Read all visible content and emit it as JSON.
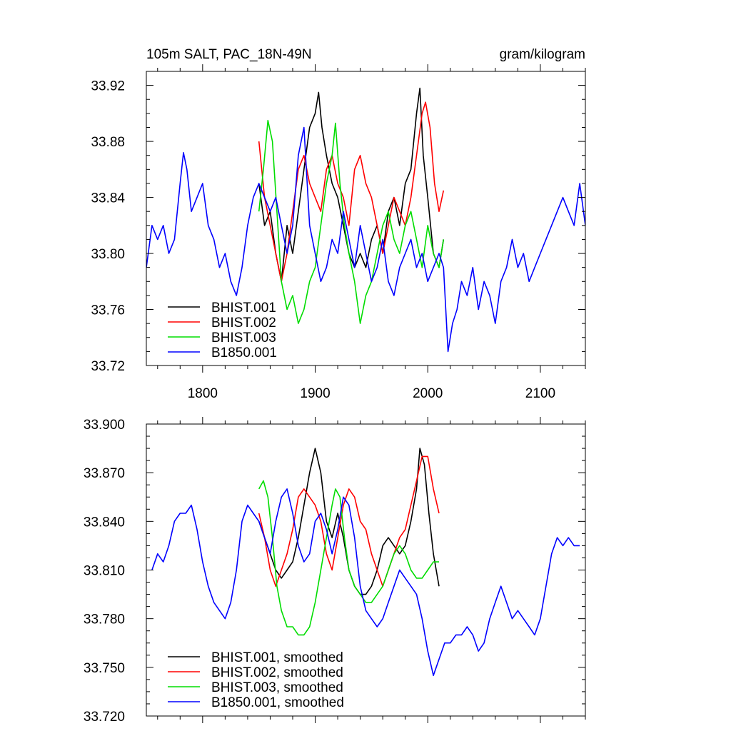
{
  "chart_data": [
    {
      "type": "line",
      "title_left": "105m SALT, PAC_18N-49N",
      "title_right": "gram/kilogram",
      "xlim": [
        1750,
        2140
      ],
      "ylim": [
        33.72,
        33.93
      ],
      "x_ticks": [
        1800,
        1900,
        2000,
        2100
      ],
      "x_tick_labels": [
        "1800",
        "1900",
        "2000",
        "2100"
      ],
      "y_ticks": [
        33.72,
        33.76,
        33.8,
        33.84,
        33.88,
        33.92
      ],
      "y_tick_labels": [
        "33.72",
        "33.76",
        "33.80",
        "33.84",
        "33.88",
        "33.92"
      ],
      "legend_position": "bottom-left",
      "series": [
        {
          "name": "BHIST.001",
          "color": "#000000",
          "x": [
            1850,
            1855,
            1860,
            1865,
            1870,
            1875,
            1880,
            1885,
            1890,
            1895,
            1900,
            1903,
            1906,
            1910,
            1915,
            1920,
            1925,
            1930,
            1935,
            1940,
            1945,
            1950,
            1955,
            1960,
            1965,
            1970,
            1975,
            1980,
            1985,
            1990,
            1993,
            1996,
            2000,
            2005,
            2010,
            2014
          ],
          "y": [
            33.85,
            33.82,
            33.83,
            33.8,
            33.78,
            33.82,
            33.8,
            33.83,
            33.86,
            33.89,
            33.9,
            33.915,
            33.89,
            33.87,
            33.85,
            33.84,
            33.82,
            33.8,
            33.79,
            33.8,
            33.79,
            33.81,
            33.82,
            33.8,
            33.83,
            33.84,
            33.82,
            33.85,
            33.86,
            33.9,
            33.918,
            33.87,
            33.84,
            33.8,
            33.79,
            33.81
          ]
        },
        {
          "name": "BHIST.002",
          "color": "#ff0000",
          "x": [
            1850,
            1855,
            1860,
            1865,
            1870,
            1875,
            1880,
            1885,
            1890,
            1895,
            1900,
            1905,
            1910,
            1915,
            1920,
            1925,
            1930,
            1935,
            1940,
            1945,
            1950,
            1955,
            1960,
            1965,
            1970,
            1975,
            1980,
            1985,
            1990,
            1995,
            1998,
            2002,
            2006,
            2010,
            2014
          ],
          "y": [
            33.88,
            33.84,
            33.82,
            33.8,
            33.78,
            33.8,
            33.83,
            33.86,
            33.87,
            33.85,
            33.84,
            33.83,
            33.86,
            33.87,
            33.85,
            33.84,
            33.82,
            33.86,
            33.87,
            33.85,
            33.84,
            33.82,
            33.8,
            33.82,
            33.84,
            33.83,
            33.82,
            33.84,
            33.87,
            33.9,
            33.908,
            33.89,
            33.85,
            33.83,
            33.845
          ]
        },
        {
          "name": "BHIST.003",
          "color": "#00dd00",
          "x": [
            1850,
            1854,
            1858,
            1862,
            1866,
            1870,
            1875,
            1880,
            1885,
            1890,
            1895,
            1900,
            1905,
            1910,
            1915,
            1918,
            1922,
            1926,
            1930,
            1935,
            1940,
            1945,
            1950,
            1955,
            1960,
            1965,
            1970,
            1975,
            1980,
            1985,
            1990,
            1995,
            2000,
            2005,
            2010,
            2014
          ],
          "y": [
            33.83,
            33.86,
            33.895,
            33.88,
            33.83,
            33.78,
            33.76,
            33.77,
            33.75,
            33.76,
            33.78,
            33.79,
            33.82,
            33.85,
            33.87,
            33.893,
            33.85,
            33.82,
            33.8,
            33.78,
            33.75,
            33.77,
            33.78,
            33.8,
            33.82,
            33.83,
            33.81,
            33.8,
            33.82,
            33.83,
            33.81,
            33.79,
            33.82,
            33.8,
            33.79,
            33.81
          ]
        },
        {
          "name": "B1850.001",
          "color": "#0000ff",
          "x": [
            1750,
            1755,
            1760,
            1765,
            1770,
            1775,
            1780,
            1783,
            1786,
            1790,
            1795,
            1800,
            1805,
            1810,
            1815,
            1820,
            1825,
            1830,
            1835,
            1840,
            1845,
            1850,
            1855,
            1860,
            1865,
            1870,
            1875,
            1880,
            1885,
            1890,
            1895,
            1900,
            1905,
            1910,
            1915,
            1920,
            1925,
            1930,
            1935,
            1940,
            1945,
            1950,
            1955,
            1960,
            1965,
            1970,
            1975,
            1980,
            1985,
            1990,
            1995,
            2000,
            2005,
            2010,
            2014,
            2018,
            2022,
            2026,
            2030,
            2035,
            2040,
            2045,
            2050,
            2055,
            2060,
            2065,
            2070,
            2075,
            2080,
            2085,
            2090,
            2095,
            2100,
            2105,
            2110,
            2115,
            2120,
            2125,
            2130,
            2135,
            2140
          ],
          "y": [
            33.79,
            33.82,
            33.81,
            33.82,
            33.8,
            33.81,
            33.85,
            33.872,
            33.86,
            33.83,
            33.84,
            33.85,
            33.82,
            33.81,
            33.79,
            33.8,
            33.78,
            33.77,
            33.79,
            33.82,
            33.84,
            33.85,
            33.84,
            33.83,
            33.84,
            33.82,
            33.8,
            33.82,
            33.87,
            33.89,
            33.82,
            33.8,
            33.78,
            33.79,
            33.81,
            33.8,
            33.83,
            33.81,
            33.79,
            33.82,
            33.8,
            33.78,
            33.79,
            33.81,
            33.78,
            33.77,
            33.79,
            33.8,
            33.81,
            33.79,
            33.8,
            33.78,
            33.79,
            33.8,
            33.79,
            33.73,
            33.75,
            33.76,
            33.78,
            33.77,
            33.79,
            33.76,
            33.78,
            33.77,
            33.75,
            33.78,
            33.79,
            33.81,
            33.79,
            33.8,
            33.78,
            33.79,
            33.8,
            33.81,
            33.82,
            33.83,
            33.84,
            33.83,
            33.82,
            33.85,
            33.82
          ]
        }
      ]
    },
    {
      "type": "line",
      "xlim": [
        1750,
        2140
      ],
      "ylim": [
        33.72,
        33.9
      ],
      "x_ticks": [
        1800,
        1900,
        2000,
        2100
      ],
      "y_ticks": [
        33.72,
        33.75,
        33.78,
        33.81,
        33.84,
        33.87,
        33.9
      ],
      "y_tick_labels": [
        "33.720",
        "33.750",
        "33.780",
        "33.810",
        "33.840",
        "33.870",
        "33.900"
      ],
      "legend_position": "bottom-left",
      "series": [
        {
          "name": "BHIST.001, smoothed",
          "color": "#000000",
          "x": [
            1850,
            1855,
            1860,
            1865,
            1870,
            1875,
            1880,
            1885,
            1890,
            1895,
            1900,
            1905,
            1910,
            1915,
            1920,
            1925,
            1930,
            1935,
            1940,
            1945,
            1950,
            1955,
            1960,
            1965,
            1970,
            1975,
            1980,
            1985,
            1990,
            1993,
            1997,
            2001,
            2005,
            2010
          ],
          "y": [
            33.84,
            33.83,
            33.82,
            33.81,
            33.805,
            33.81,
            33.815,
            33.83,
            33.85,
            33.87,
            33.885,
            33.87,
            33.84,
            33.83,
            33.845,
            33.83,
            33.81,
            33.8,
            33.795,
            33.795,
            33.8,
            33.81,
            33.825,
            33.83,
            33.825,
            33.82,
            33.825,
            33.84,
            33.86,
            33.885,
            33.875,
            33.845,
            33.82,
            33.8
          ]
        },
        {
          "name": "BHIST.002, smoothed",
          "color": "#ff0000",
          "x": [
            1850,
            1855,
            1860,
            1865,
            1870,
            1875,
            1880,
            1885,
            1890,
            1895,
            1900,
            1905,
            1910,
            1915,
            1920,
            1925,
            1930,
            1935,
            1940,
            1945,
            1950,
            1955,
            1960,
            1965,
            1970,
            1975,
            1980,
            1985,
            1990,
            1995,
            2000,
            2005,
            2010
          ],
          "y": [
            33.845,
            33.83,
            33.81,
            33.8,
            33.81,
            33.82,
            33.835,
            33.855,
            33.86,
            33.855,
            33.85,
            33.84,
            33.82,
            33.81,
            33.83,
            33.85,
            33.86,
            33.855,
            33.84,
            33.835,
            33.82,
            33.81,
            33.8,
            33.81,
            33.82,
            33.83,
            33.835,
            33.85,
            33.865,
            33.88,
            33.88,
            33.86,
            33.845
          ]
        },
        {
          "name": "BHIST.003, smoothed",
          "color": "#00dd00",
          "x": [
            1850,
            1854,
            1858,
            1862,
            1866,
            1870,
            1875,
            1880,
            1885,
            1890,
            1895,
            1900,
            1905,
            1910,
            1915,
            1918,
            1922,
            1926,
            1930,
            1935,
            1940,
            1945,
            1950,
            1955,
            1960,
            1965,
            1970,
            1975,
            1980,
            1985,
            1990,
            1995,
            2000,
            2005,
            2010
          ],
          "y": [
            33.86,
            33.865,
            33.855,
            33.83,
            33.8,
            33.785,
            33.775,
            33.775,
            33.77,
            33.77,
            33.775,
            33.79,
            33.81,
            33.83,
            33.85,
            33.86,
            33.855,
            33.83,
            33.81,
            33.8,
            33.795,
            33.79,
            33.79,
            33.795,
            33.8,
            33.81,
            33.82,
            33.825,
            33.82,
            33.81,
            33.805,
            33.805,
            33.81,
            33.815,
            33.815
          ]
        },
        {
          "name": "B1850.001, smoothed",
          "color": "#0000ff",
          "x": [
            1755,
            1760,
            1765,
            1770,
            1775,
            1780,
            1785,
            1790,
            1795,
            1800,
            1805,
            1810,
            1815,
            1820,
            1825,
            1830,
            1835,
            1840,
            1845,
            1850,
            1855,
            1860,
            1865,
            1870,
            1875,
            1880,
            1885,
            1890,
            1895,
            1900,
            1905,
            1910,
            1915,
            1920,
            1925,
            1930,
            1935,
            1940,
            1945,
            1950,
            1955,
            1960,
            1965,
            1970,
            1975,
            1980,
            1985,
            1990,
            1995,
            2000,
            2005,
            2010,
            2015,
            2020,
            2025,
            2030,
            2035,
            2040,
            2045,
            2050,
            2055,
            2060,
            2065,
            2070,
            2075,
            2080,
            2085,
            2090,
            2095,
            2100,
            2105,
            2110,
            2115,
            2120,
            2125,
            2130,
            2135
          ],
          "y": [
            33.81,
            33.82,
            33.815,
            33.825,
            33.84,
            33.845,
            33.845,
            33.85,
            33.835,
            33.815,
            33.8,
            33.79,
            33.785,
            33.78,
            33.79,
            33.81,
            33.84,
            33.85,
            33.845,
            33.84,
            33.83,
            33.82,
            33.84,
            33.855,
            33.86,
            33.845,
            33.825,
            33.815,
            33.82,
            33.84,
            33.845,
            33.835,
            33.82,
            33.835,
            33.855,
            33.85,
            33.83,
            33.8,
            33.785,
            33.78,
            33.775,
            33.78,
            33.79,
            33.8,
            33.81,
            33.805,
            33.8,
            33.795,
            33.78,
            33.76,
            33.745,
            33.755,
            33.765,
            33.765,
            33.77,
            33.77,
            33.775,
            33.77,
            33.76,
            33.765,
            33.78,
            33.79,
            33.8,
            33.79,
            33.78,
            33.785,
            33.78,
            33.775,
            33.77,
            33.78,
            33.8,
            33.82,
            33.83,
            33.825,
            33.83,
            33.825,
            33.825
          ]
        }
      ]
    }
  ]
}
